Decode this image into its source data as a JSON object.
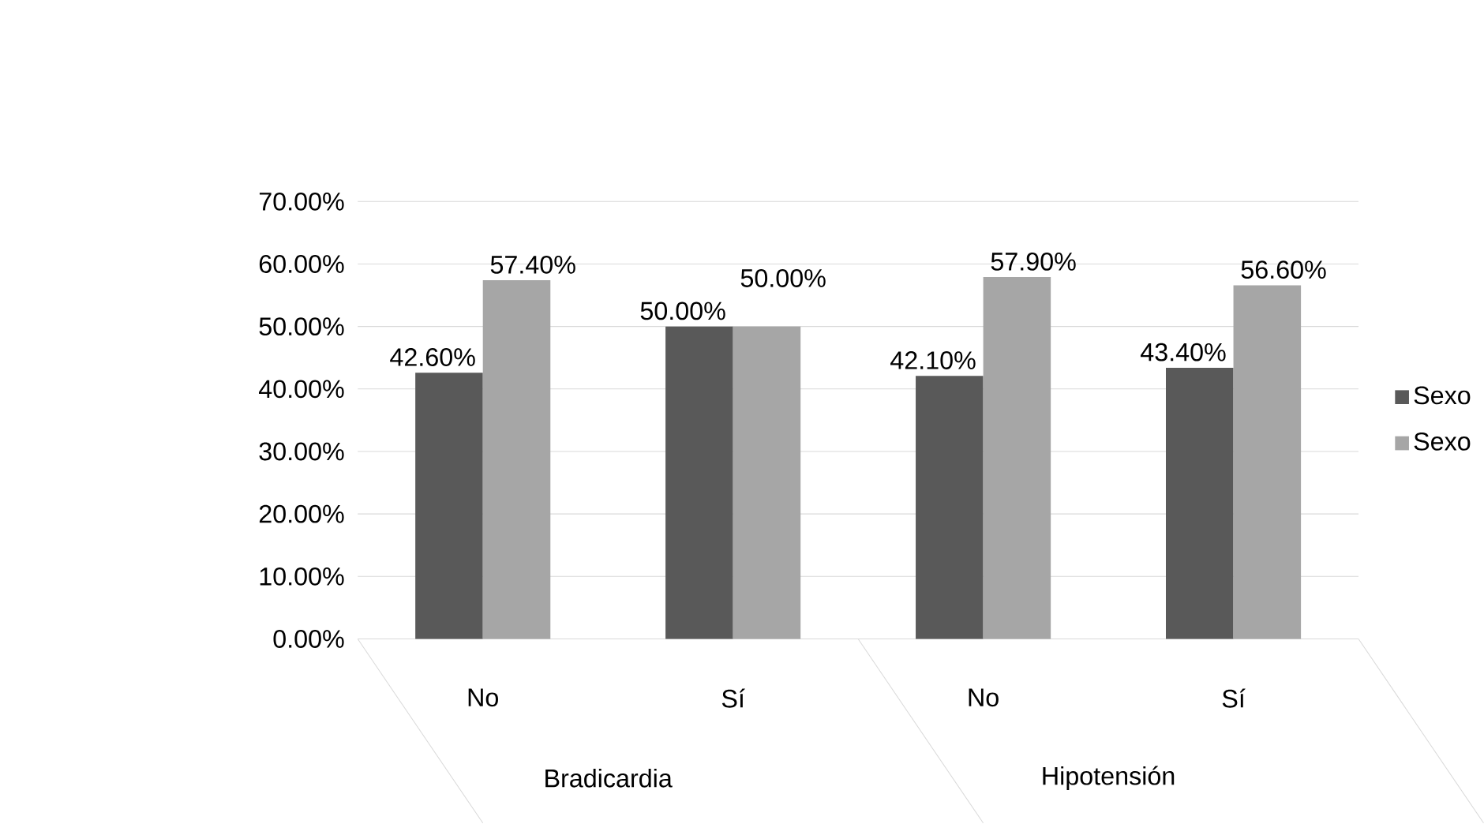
{
  "chart_data": {
    "type": "bar",
    "categories": [
      "No",
      "Sí",
      "No",
      "Sí"
    ],
    "series": [
      {
        "name": "Sexo",
        "color": "#595959",
        "values": [
          42.6,
          50.0,
          42.1,
          43.4
        ],
        "value_labels": [
          "42.60%",
          "50.00%",
          "42.10%",
          "43.40%"
        ]
      },
      {
        "name": "Sexo",
        "color": "#a6a6a6",
        "values": [
          57.4,
          50.0,
          57.9,
          56.6
        ],
        "value_labels": [
          "57.40%",
          "50.00%",
          "57.90%",
          "56.60%"
        ]
      }
    ],
    "annotations": [
      "Bradicardia",
      "Hipotensión"
    ],
    "ylim": [
      0,
      70
    ],
    "yticks": [
      {
        "value": 0,
        "label": "0.00%"
      },
      {
        "value": 10,
        "label": "10.00%"
      },
      {
        "value": 20,
        "label": "20.00%"
      },
      {
        "value": 30,
        "label": "30.00%"
      },
      {
        "value": 40,
        "label": "40.00%"
      },
      {
        "value": 50,
        "label": "50.00%"
      },
      {
        "value": 60,
        "label": "60.00%"
      },
      {
        "value": 70,
        "label": "70.00%"
      }
    ],
    "grid": "y",
    "legend": "right"
  }
}
